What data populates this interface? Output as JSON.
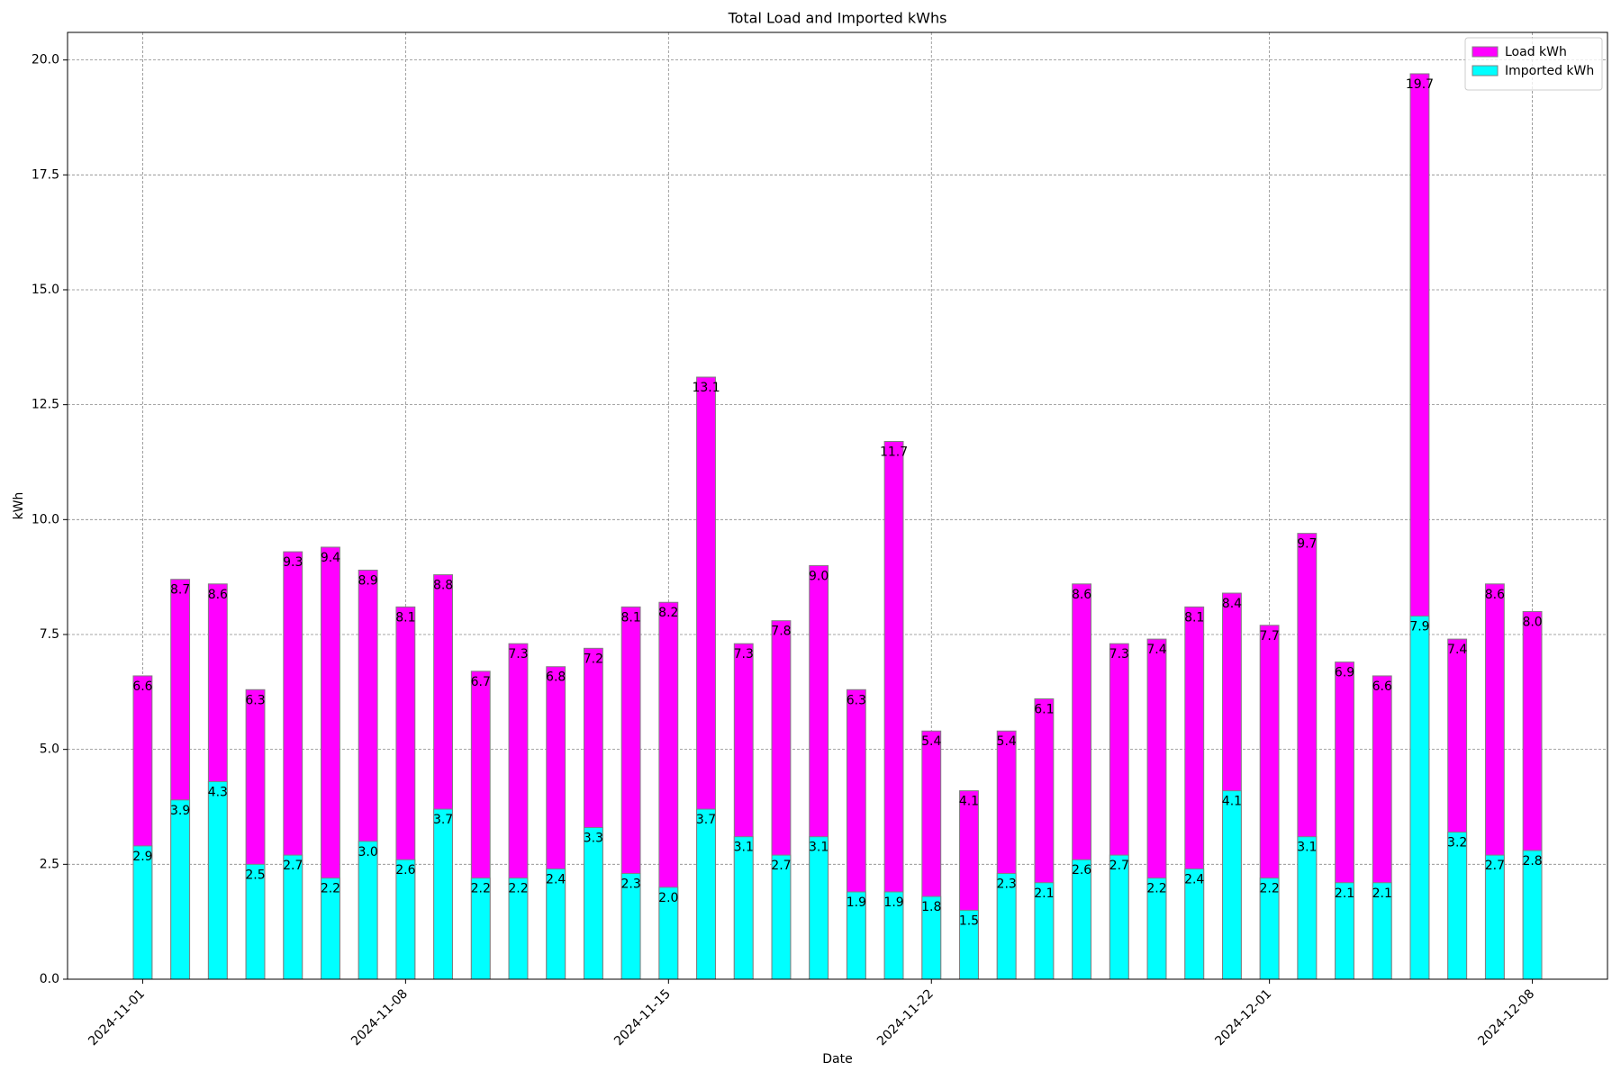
{
  "chart_data": {
    "type": "bar",
    "title": "Total Load and Imported kWhs",
    "x_label": "Date",
    "y_label": "kWh",
    "x": [
      "2024-11-01",
      "2024-11-02",
      "2024-11-03",
      "2024-11-04",
      "2024-11-05",
      "2024-11-06",
      "2024-11-07",
      "2024-11-08",
      "2024-11-09",
      "2024-11-10",
      "2024-11-11",
      "2024-11-12",
      "2024-11-13",
      "2024-11-14",
      "2024-11-15",
      "2024-11-16",
      "2024-11-17",
      "2024-11-18",
      "2024-11-19",
      "2024-11-20",
      "2024-11-21",
      "2024-11-22",
      "2024-11-23",
      "2024-11-24",
      "2024-11-25",
      "2024-11-26",
      "2024-11-27",
      "2024-11-28",
      "2024-11-29",
      "2024-11-30",
      "2024-12-01",
      "2024-12-02",
      "2024-12-03",
      "2024-12-04",
      "2024-12-05",
      "2024-12-06",
      "2024-12-07",
      "2024-12-08"
    ],
    "series": [
      {
        "name": "Load kWh",
        "color": "#ff00ff",
        "values": [
          6.6,
          8.7,
          8.6,
          6.3,
          9.3,
          9.4,
          8.9,
          8.1,
          8.8,
          6.7,
          7.3,
          6.8,
          7.2,
          8.1,
          8.2,
          13.1,
          7.3,
          7.8,
          9.0,
          6.3,
          11.7,
          5.4,
          4.1,
          5.4,
          6.1,
          8.6,
          7.3,
          7.4,
          8.1,
          8.4,
          7.7,
          9.7,
          6.9,
          6.6,
          19.7,
          7.4,
          8.6,
          8.0
        ],
        "value_labels": [
          "6.6",
          "8.7",
          "8.6",
          "6.3",
          "9.3",
          "9.4",
          "8.9",
          "8.1",
          "8.8",
          "6.7",
          "7.3",
          "6.8",
          "7.2",
          "8.1",
          "8.2",
          "13.1",
          "7.3",
          "7.8",
          "9.0",
          "6.3",
          "11.7",
          "5.4",
          "4.1",
          "5.4",
          "6.1",
          "8.6",
          "7.3",
          "7.4",
          "8.1",
          "8.4",
          "7.7",
          "9.7",
          "6.9",
          "6.6",
          "19.7",
          "7.4",
          "8.6",
          "8.0"
        ]
      },
      {
        "name": "Imported kWh",
        "color": "#00ffff",
        "values": [
          2.9,
          3.9,
          4.3,
          2.5,
          2.7,
          2.2,
          3.0,
          2.6,
          3.7,
          2.2,
          2.2,
          2.4,
          3.3,
          2.3,
          2.0,
          3.7,
          3.1,
          2.7,
          3.1,
          1.9,
          1.9,
          1.8,
          1.5,
          2.3,
          2.1,
          2.6,
          2.7,
          2.2,
          2.4,
          4.1,
          2.2,
          3.1,
          2.1,
          2.1,
          7.9,
          3.2,
          2.7,
          2.8
        ],
        "value_labels": [
          "2.9",
          "3.9",
          "4.3",
          "2.5",
          "2.7",
          "2.2",
          "3.0",
          "2.6",
          "3.7",
          "2.2",
          "2.2",
          "2.4",
          "3.3",
          "2.3",
          "2.0",
          "3.7",
          "3.1",
          "2.7",
          "3.1",
          "1.9",
          "1.9",
          "1.8",
          "1.5",
          "2.3",
          "2.1",
          "2.6",
          "2.7",
          "2.2",
          "2.4",
          "4.1",
          "2.2",
          "3.1",
          "2.1",
          "2.1",
          "7.9",
          "3.2",
          "2.7",
          "2.8"
        ]
      }
    ],
    "xlim": [
      "2024-10-30",
      "2024-12-10"
    ],
    "xticks": [
      "2024-11-01",
      "2024-11-08",
      "2024-11-15",
      "2024-11-22",
      "2024-12-01",
      "2024-12-08"
    ],
    "ylim": [
      0,
      20.6
    ],
    "yticks": [
      {
        "value": 0,
        "label": "0.0"
      },
      2.5,
      {
        "value": 5,
        "label": "5.0"
      },
      7.5,
      {
        "value": 10,
        "label": "10.0"
      },
      12.5,
      {
        "value": 15,
        "label": "15.0"
      },
      17.5,
      {
        "value": 20,
        "label": "20.0"
      }
    ],
    "grid": true,
    "legend": "upper right",
    "bar_edge_color": "#808080"
  }
}
